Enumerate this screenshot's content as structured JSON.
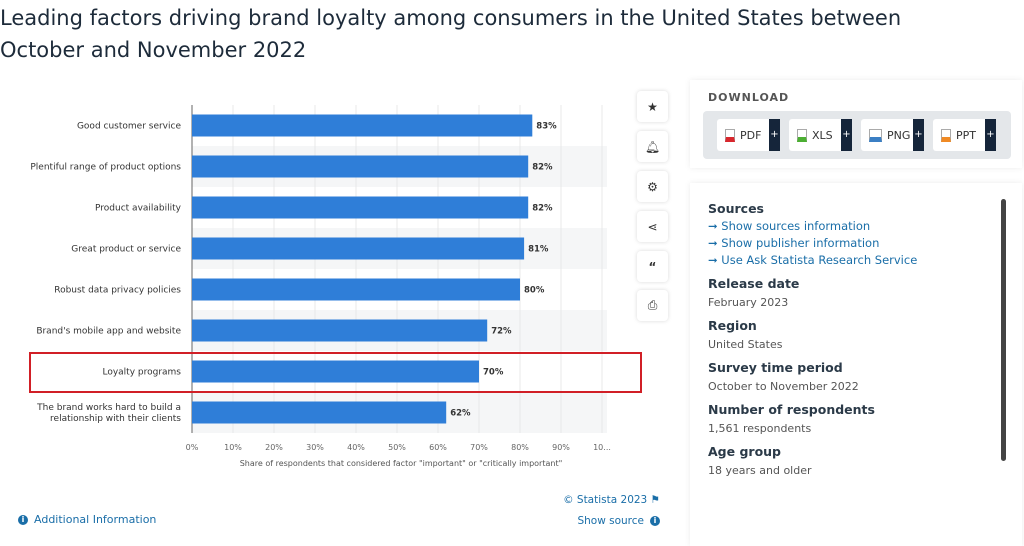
{
  "title": "Leading factors driving brand loyalty among consumers in the United States between October and November 2022",
  "chart_data": {
    "type": "bar",
    "orientation": "horizontal",
    "categories": [
      "Good customer service",
      "Plentiful range of product options",
      "Product availability",
      "Great product or service",
      "Robust data privacy policies",
      "Brand's mobile app and website",
      "Loyalty programs",
      "The brand works hard to build a relationship with their clients"
    ],
    "values": [
      83,
      82,
      82,
      81,
      80,
      72,
      70,
      62
    ],
    "value_labels": [
      "83%",
      "82%",
      "82%",
      "81%",
      "80%",
      "72%",
      "70%",
      "62%"
    ],
    "xticks": [
      "0%",
      "10%",
      "20%",
      "30%",
      "40%",
      "50%",
      "60%",
      "70%",
      "80%",
      "90%",
      "10..."
    ],
    "xlim": [
      0,
      100
    ],
    "xlabel": "Share of respondents that considered factor \"important\" or \"critically important\"",
    "bar_color": "#2f7ed8",
    "highlighted_category": "Loyalty programs",
    "highlight_color": "#d11f26"
  },
  "tools": [
    "star-icon",
    "bell-icon",
    "gear-icon",
    "share-icon",
    "quote-icon",
    "print-icon"
  ],
  "footer": {
    "additional": "Additional Information",
    "copyright": "© Statista 2023",
    "show_source": "Show source"
  },
  "download": {
    "heading": "DOWNLOAD",
    "buttons": [
      {
        "label": "PDF",
        "color": "#d9262c"
      },
      {
        "label": "XLS",
        "color": "#4caf32"
      },
      {
        "label": "PNG",
        "color": "#3b7fc4"
      },
      {
        "label": "PPT",
        "color": "#f08a24"
      }
    ],
    "plus": "+"
  },
  "meta": {
    "sources_heading": "Sources",
    "links": [
      "Show sources information",
      "Show publisher information",
      "Use Ask Statista Research Service"
    ],
    "release_label": "Release date",
    "release": "February 2023",
    "region_label": "Region",
    "region": "United States",
    "survey_label": "Survey time period",
    "survey": "October to November 2022",
    "resp_label": "Number of respondents",
    "resp": "1,561 respondents",
    "age_label": "Age group",
    "age": "18 years and older"
  }
}
